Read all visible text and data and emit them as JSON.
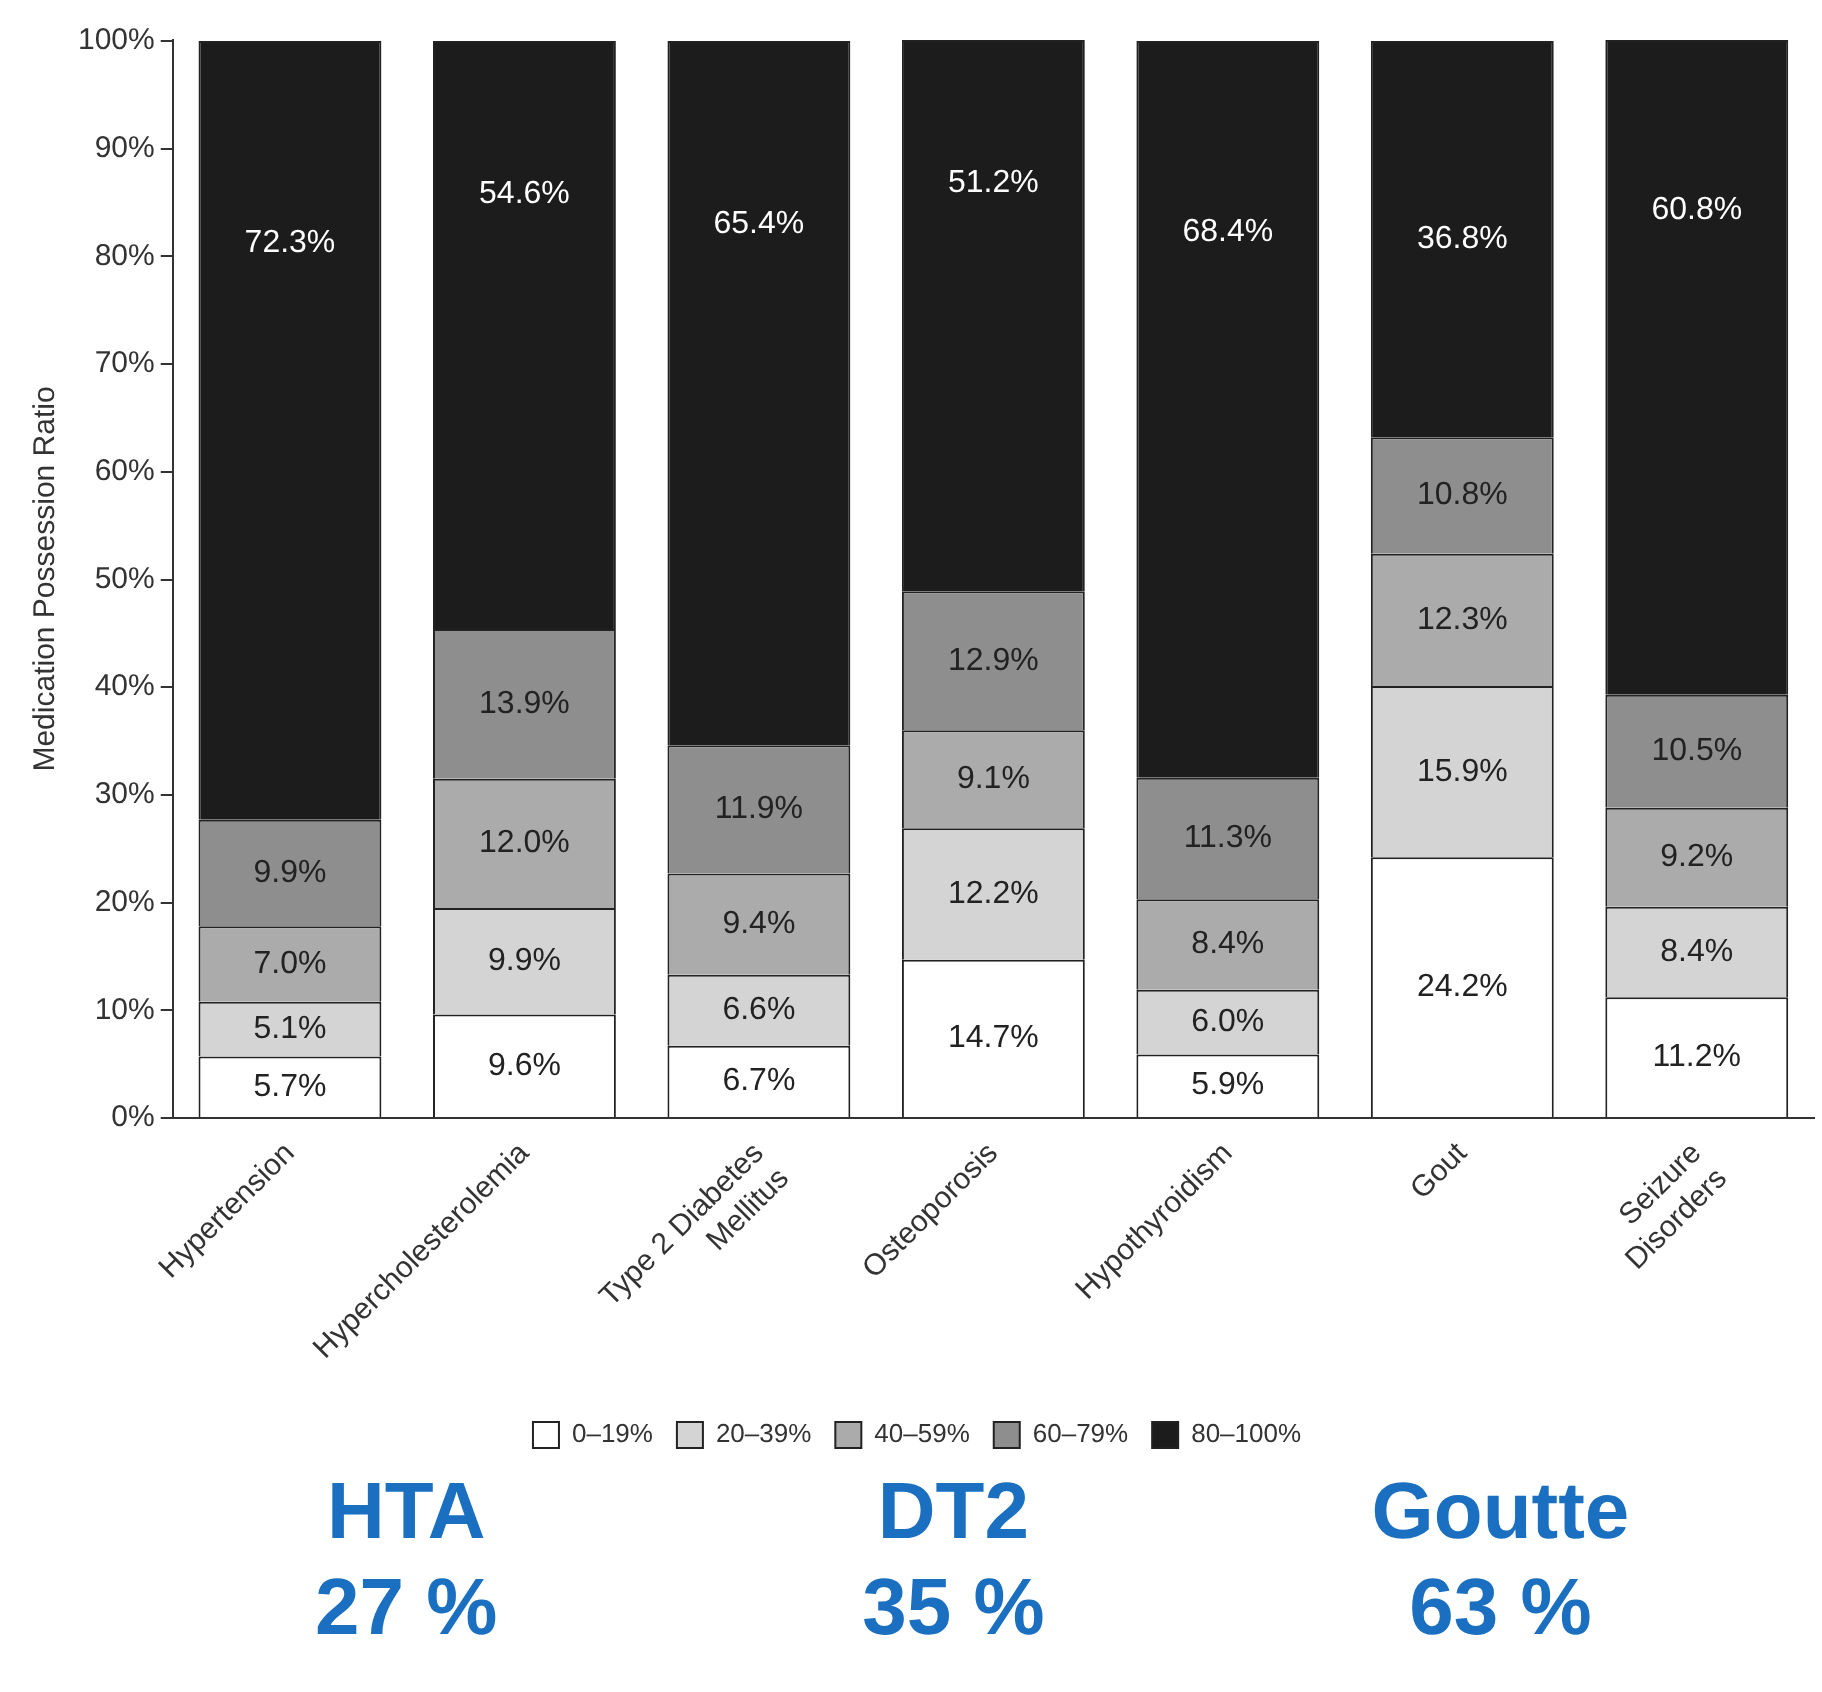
{
  "chart_data": {
    "type": "bar",
    "stacked": true,
    "ylabel": "Medication Possession Ratio",
    "categories": [
      "Hypertension",
      "Hypercholesterolemia",
      "Type 2 Diabetes\nMellitus",
      "Osteoporosis",
      "Hypothyroidism",
      "Gout",
      "Seizure\nDisorders"
    ],
    "series": [
      {
        "name": "0–19%",
        "color": "#ffffff",
        "values": [
          5.7,
          9.6,
          6.7,
          14.7,
          5.9,
          24.2,
          11.2
        ],
        "value_labels": [
          "5.7%",
          "9.6%",
          "6.7%",
          "14.7%",
          "5.9%",
          "24.2%",
          "11.2%"
        ]
      },
      {
        "name": "20–39%",
        "color": "#d4d4d4",
        "values": [
          5.1,
          9.9,
          6.6,
          12.2,
          6.0,
          15.9,
          8.4
        ],
        "value_labels": [
          "5.1%",
          "9.9%",
          "6.6%",
          "12.2%",
          "6.0%",
          "15.9%",
          "8.4%"
        ]
      },
      {
        "name": "40–59%",
        "color": "#ababab",
        "values": [
          7.0,
          12.0,
          9.4,
          9.1,
          8.4,
          12.3,
          9.2
        ],
        "value_labels": [
          "7.0%",
          "12.0%",
          "9.4%",
          "9.1%",
          "8.4%",
          "12.3%",
          "9.2%"
        ]
      },
      {
        "name": "60–79%",
        "color": "#8e8e8e",
        "values": [
          9.9,
          13.9,
          11.9,
          12.9,
          11.3,
          10.8,
          10.5
        ],
        "value_labels": [
          "9.9%",
          "13.9%",
          "11.9%",
          "12.9%",
          "11.3%",
          "10.8%",
          "10.5%"
        ]
      },
      {
        "name": "80–100%",
        "color": "#1c1c1c",
        "values": [
          72.3,
          54.6,
          65.4,
          51.2,
          68.4,
          36.8,
          60.8
        ],
        "value_labels": [
          "72.3%",
          "54.6%",
          "65.4%",
          "51.2%",
          "68.4%",
          "36.8%",
          "60.8%"
        ]
      }
    ],
    "ylim": [
      0,
      100.1
    ],
    "yticks": [
      {
        "value": 0,
        "label": "0%"
      },
      {
        "value": 10,
        "label": "10%"
      },
      {
        "value": 20,
        "label": "20%"
      },
      {
        "value": 30,
        "label": "30%"
      },
      {
        "value": 40,
        "label": "40%"
      },
      {
        "value": 50,
        "label": "50%"
      },
      {
        "value": 60,
        "label": "60%"
      },
      {
        "value": 70,
        "label": "70%"
      },
      {
        "value": 80,
        "label": "80%"
      },
      {
        "value": 90,
        "label": "90%"
      },
      {
        "value": 100,
        "label": "100%"
      }
    ],
    "grid": false,
    "legend": "bottom",
    "annotations": [
      "HTA\n27 %",
      "DT2\n35 %",
      "Goutte\n63 %"
    ]
  }
}
